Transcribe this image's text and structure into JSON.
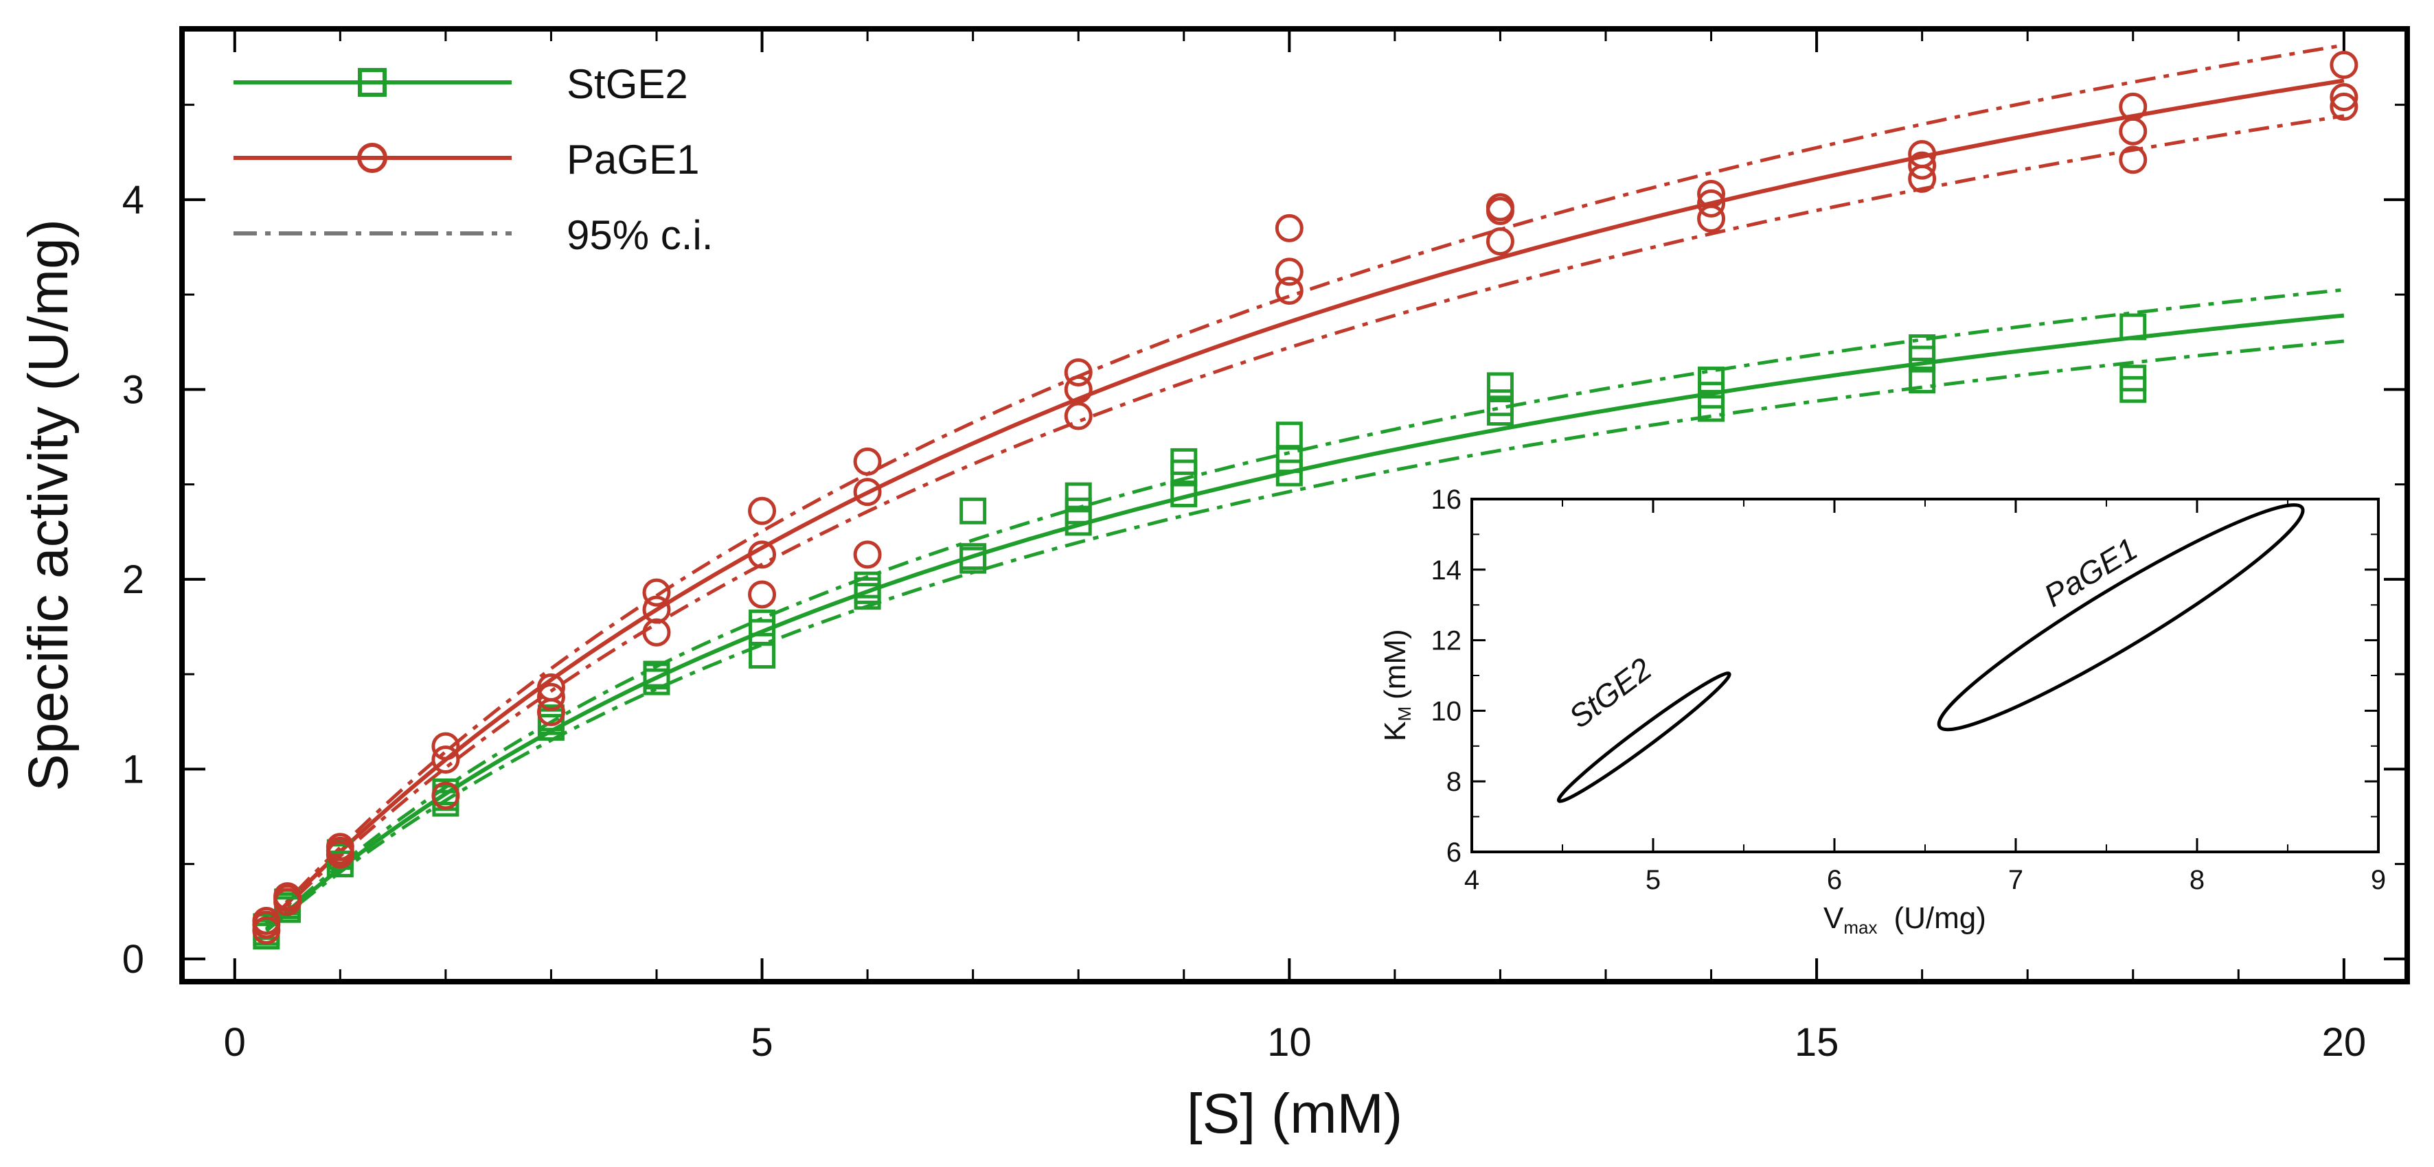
{
  "chart_data": [
    {
      "type": "scatter",
      "title": "",
      "xlabel": "[S] (mM)",
      "ylabel": "Specific activity (U/mg)",
      "xlim": [
        -0.5,
        20.6
      ],
      "ylim": [
        -0.12,
        4.9
      ],
      "xticks": [
        0,
        5,
        10,
        15,
        20
      ],
      "xtick_labels": [
        "0",
        "5",
        "10",
        "15",
        "20"
      ],
      "yticks": [
        0,
        1,
        2,
        3,
        4
      ],
      "ytick_labels": [
        "0",
        "1",
        "2",
        "3",
        "4"
      ],
      "grid": false,
      "legend_position": "top-left",
      "legend": [
        {
          "label": "StGE2",
          "color": "#1f9e2c",
          "style": "solid",
          "marker": "square"
        },
        {
          "label": "PaGE1",
          "color": "#c0392b",
          "style": "solid",
          "marker": "circle"
        },
        {
          "label": "95% c.i.",
          "color": "#777777",
          "style": "dashdot",
          "marker": "none"
        }
      ],
      "model": "Michaelis-Menten v = Vmax*[S]/(KM+[S])",
      "series": [
        {
          "name": "StGE2",
          "color": "#1f9e2c",
          "marker": "square",
          "fit": {
            "Vmax": 5.0,
            "KM": 9.5
          },
          "ci": [
            {
              "Vmax": 5.2,
              "KM": 9.5
            },
            {
              "Vmax": 4.8,
              "KM": 9.5
            }
          ],
          "points": [
            [
              0.3,
              0.14
            ],
            [
              0.3,
              0.17
            ],
            [
              0.3,
              0.12
            ],
            [
              0.5,
              0.26
            ],
            [
              0.5,
              0.28
            ],
            [
              0.5,
              0.3
            ],
            [
              1,
              0.5
            ],
            [
              1,
              0.54
            ],
            [
              1,
              0.56
            ],
            [
              2,
              0.82
            ],
            [
              2,
              0.85
            ],
            [
              2,
              0.88
            ],
            [
              3,
              1.22
            ],
            [
              3,
              1.25
            ],
            [
              3,
              1.27
            ],
            [
              4,
              1.46
            ],
            [
              4,
              1.49
            ],
            [
              4,
              1.5
            ],
            [
              5,
              1.6
            ],
            [
              5,
              1.72
            ],
            [
              5,
              1.77
            ],
            [
              6,
              1.91
            ],
            [
              6,
              1.94
            ],
            [
              6,
              1.97
            ],
            [
              7,
              2.1
            ],
            [
              7,
              2.12
            ],
            [
              7,
              2.36
            ],
            [
              8,
              2.3
            ],
            [
              8,
              2.36
            ],
            [
              8,
              2.44
            ],
            [
              9,
              2.45
            ],
            [
              9,
              2.56
            ],
            [
              9,
              2.62
            ],
            [
              10,
              2.56
            ],
            [
              10,
              2.63
            ],
            [
              10,
              2.76
            ],
            [
              12,
              2.88
            ],
            [
              12,
              2.93
            ],
            [
              12,
              3.02
            ],
            [
              14,
              2.9
            ],
            [
              14,
              2.97
            ],
            [
              14,
              3.05
            ],
            [
              16,
              3.05
            ],
            [
              16,
              3.16
            ],
            [
              16,
              3.22
            ],
            [
              18,
              3.0
            ],
            [
              18,
              3.06
            ],
            [
              18,
              3.33
            ]
          ]
        },
        {
          "name": "PaGE1",
          "color": "#c0392b",
          "marker": "circle",
          "fit": {
            "Vmax": 7.45,
            "KM": 12.2
          },
          "ci": [
            {
              "Vmax": 7.75,
              "KM": 12.2
            },
            {
              "Vmax": 7.15,
              "KM": 12.2
            }
          ],
          "points": [
            [
              0.3,
              0.15
            ],
            [
              0.3,
              0.18
            ],
            [
              0.3,
              0.2
            ],
            [
              0.5,
              0.3
            ],
            [
              0.5,
              0.32
            ],
            [
              0.5,
              0.33
            ],
            [
              1,
              0.55
            ],
            [
              1,
              0.57
            ],
            [
              1,
              0.59
            ],
            [
              2,
              0.86
            ],
            [
              2,
              1.05
            ],
            [
              2,
              1.12
            ],
            [
              3,
              1.3
            ],
            [
              3,
              1.38
            ],
            [
              3,
              1.43
            ],
            [
              4,
              1.72
            ],
            [
              4,
              1.84
            ],
            [
              4,
              1.93
            ],
            [
              5,
              1.92
            ],
            [
              5,
              2.13
            ],
            [
              5,
              2.36
            ],
            [
              6,
              2.13
            ],
            [
              6,
              2.46
            ],
            [
              6,
              2.62
            ],
            [
              8,
              2.86
            ],
            [
              8,
              3.0
            ],
            [
              8,
              3.09
            ],
            [
              10,
              3.52
            ],
            [
              10,
              3.62
            ],
            [
              10,
              3.85
            ],
            [
              12,
              3.78
            ],
            [
              12,
              3.94
            ],
            [
              12,
              3.96
            ],
            [
              14,
              3.9
            ],
            [
              14,
              3.98
            ],
            [
              14,
              4.03
            ],
            [
              16,
              4.11
            ],
            [
              16,
              4.18
            ],
            [
              16,
              4.24
            ],
            [
              18,
              4.21
            ],
            [
              18,
              4.36
            ],
            [
              18,
              4.49
            ],
            [
              20,
              4.49
            ],
            [
              20,
              4.54
            ],
            [
              20,
              4.71
            ]
          ]
        }
      ]
    },
    {
      "type": "line",
      "title": "",
      "xlabel": "V",
      "xlabel_subscript": "max",
      "xlabel_unit": "(U/mg)",
      "ylabel": "K",
      "ylabel_subscript": "M",
      "ylabel_unit": "(mM)",
      "xlim": [
        4,
        9
      ],
      "ylim": [
        6,
        16
      ],
      "xticks": [
        4,
        5,
        6,
        7,
        8,
        9
      ],
      "xtick_labels": [
        "4",
        "5",
        "6",
        "7",
        "8",
        "9"
      ],
      "yticks": [
        6,
        8,
        10,
        12,
        14,
        16
      ],
      "ytick_labels": [
        "6",
        "8",
        "10",
        "12",
        "14",
        "16"
      ],
      "grid": false,
      "ellipses": [
        {
          "name": "StGE2",
          "label": "StGE2",
          "end1": [
            4.48,
            7.45
          ],
          "end2": [
            5.42,
            11.05
          ],
          "minor_half_width": 0.045
        },
        {
          "name": "PaGE1",
          "label": "PaGE1",
          "end1": [
            6.58,
            9.55
          ],
          "end2": [
            8.58,
            15.75
          ],
          "minor_half_width": 0.07
        }
      ]
    }
  ]
}
